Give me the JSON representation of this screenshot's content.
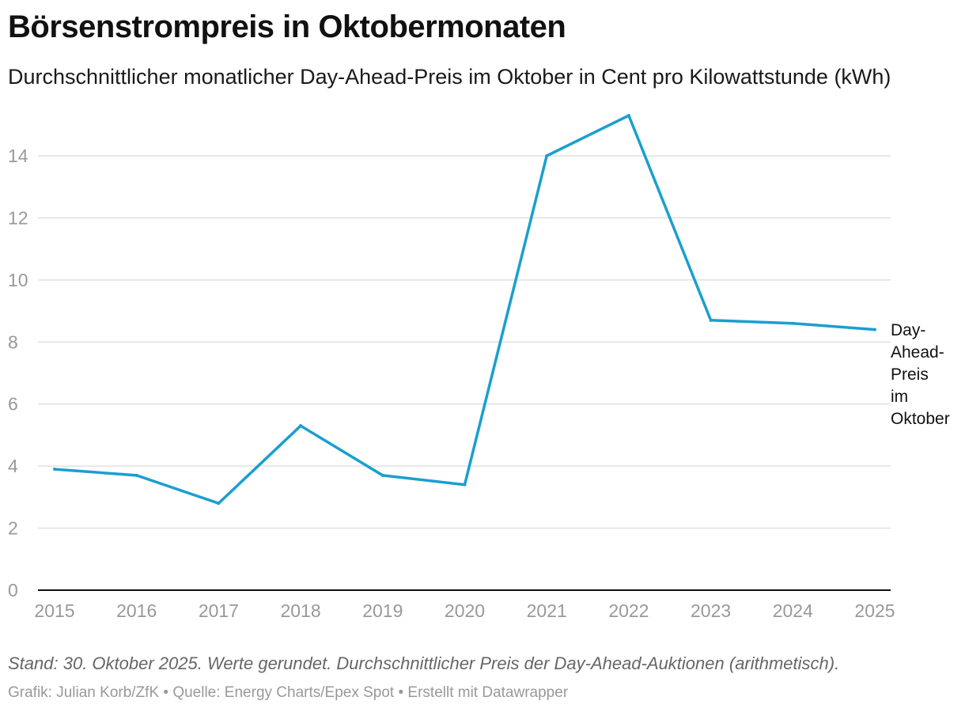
{
  "header": {
    "title": "Börsenstrompreis in Oktobermonaten",
    "subtitle": "Durchschnittlicher monatlicher Day-Ahead-Preis im Oktober in Cent pro Kilowattstunde (kWh)"
  },
  "footer": {
    "notes": "Stand: 30. Oktober 2025. Werte gerundet. Durchschnittlicher Preis der Day-Ahead-Auktionen (arithmetisch).",
    "credits": "Grafik: Julian Korb/ZfK • Quelle: Energy Charts/Epex Spot • Erstellt mit Datawrapper"
  },
  "colors": {
    "line": "#1a9fcf",
    "grid": "#e0e0e0",
    "axis": "#111111"
  },
  "chart_data": {
    "type": "line",
    "title": "Börsenstrompreis in Oktobermonaten",
    "xlabel": "",
    "ylabel": "",
    "x": [
      "2015",
      "2016",
      "2017",
      "2018",
      "2019",
      "2020",
      "2021",
      "2022",
      "2023",
      "2024",
      "2025"
    ],
    "series": [
      {
        "name": "Day-Ahead-Preis im Oktober",
        "label_lines": [
          "Day-",
          "Ahead-",
          "Preis",
          "im",
          "Oktober"
        ],
        "values": [
          3.9,
          3.7,
          2.8,
          5.3,
          3.7,
          3.4,
          14.0,
          15.3,
          8.7,
          8.6,
          8.4
        ]
      }
    ],
    "ylim": [
      0,
      15.3
    ],
    "yticks": [
      "0",
      "2",
      "4",
      "6",
      "8",
      "10",
      "12",
      "14"
    ],
    "grid": true,
    "legend": "direct label at right end of line"
  }
}
